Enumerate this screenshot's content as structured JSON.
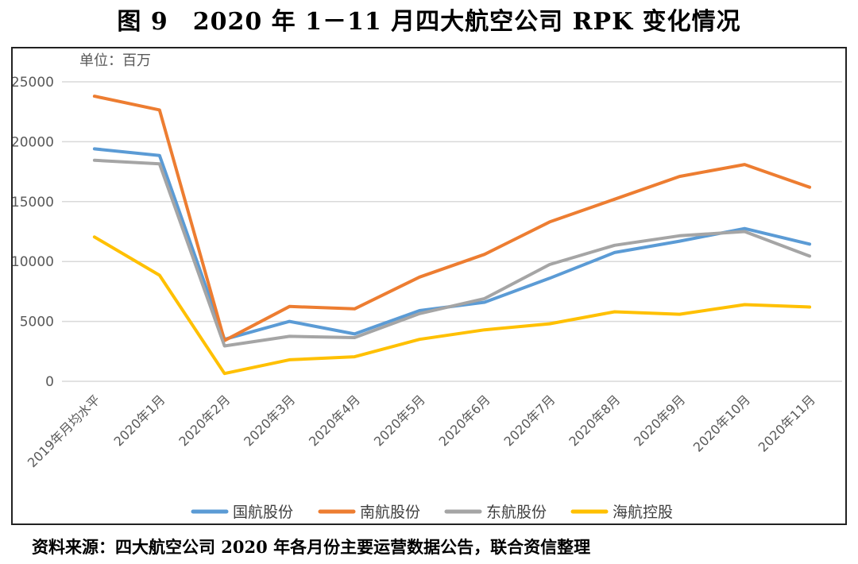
{
  "figure_title": "图 9　2020 年 1－11 月四大航空公司 RPK 变化情况",
  "source_note": "资料来源：四大航空公司 2020 年各月份主要运营数据公告，联合资信整理",
  "chart_data": {
    "type": "line",
    "title": "图 9　2020 年 1－11 月四大航空公司 RPK 变化情况",
    "unit_label": "单位：百万",
    "xlabel": "",
    "ylabel": "",
    "ylim": [
      0,
      25000
    ],
    "yticks": [
      0,
      5000,
      10000,
      15000,
      20000,
      25000
    ],
    "grid": true,
    "legend_position": "bottom",
    "categories": [
      "2019年月均水平",
      "2020年1月",
      "2020年2月",
      "2020年3月",
      "2020年4月",
      "2020年5月",
      "2020年6月",
      "2020年7月",
      "2020年8月",
      "2020年9月",
      "2020年10月",
      "2020年11月"
    ],
    "series": [
      {
        "name": "国航股份",
        "color": "#5b9bd5",
        "values": [
          19400,
          18850,
          3500,
          5000,
          3950,
          5900,
          6600,
          8600,
          10750,
          11700,
          12750,
          11450
        ]
      },
      {
        "name": "南航股份",
        "color": "#ed7d31",
        "values": [
          23800,
          22650,
          3400,
          6250,
          6050,
          8700,
          10600,
          13300,
          15200,
          17100,
          18100,
          16200
        ]
      },
      {
        "name": "东航股份",
        "color": "#a5a5a5",
        "values": [
          18450,
          18150,
          2950,
          3750,
          3650,
          5650,
          6900,
          9750,
          11350,
          12150,
          12500,
          10450
        ]
      },
      {
        "name": "海航控股",
        "color": "#ffc000",
        "values": [
          12050,
          8850,
          650,
          1800,
          2050,
          3500,
          4300,
          4800,
          5800,
          5600,
          6400,
          6200
        ]
      }
    ]
  }
}
